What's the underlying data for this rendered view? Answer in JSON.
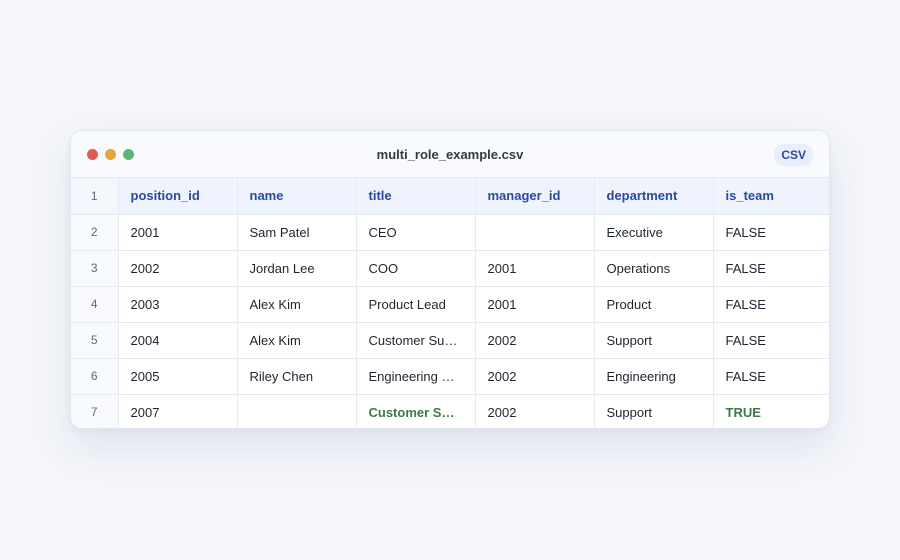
{
  "window": {
    "title": "multi_role_example.csv",
    "badge": "CSV"
  },
  "table": {
    "header_row_number": "1",
    "columns": [
      "position_id",
      "name",
      "title",
      "manager_id",
      "department",
      "is_team"
    ],
    "rows": [
      {
        "num": "2",
        "cells": [
          "2001",
          "Sam Patel",
          "CEO",
          "",
          "Executive",
          "FALSE"
        ],
        "highlight": [
          false,
          false,
          false,
          false,
          false,
          false
        ]
      },
      {
        "num": "3",
        "cells": [
          "2002",
          "Jordan Lee",
          "COO",
          "2001",
          "Operations",
          "FALSE"
        ],
        "highlight": [
          false,
          false,
          false,
          false,
          false,
          false
        ]
      },
      {
        "num": "4",
        "cells": [
          "2003",
          "Alex Kim",
          "Product Lead",
          "2001",
          "Product",
          "FALSE"
        ],
        "highlight": [
          false,
          false,
          false,
          false,
          false,
          false
        ]
      },
      {
        "num": "5",
        "cells": [
          "2004",
          "Alex Kim",
          "Customer Su…",
          "2002",
          "Support",
          "FALSE"
        ],
        "highlight": [
          false,
          false,
          false,
          false,
          false,
          false
        ]
      },
      {
        "num": "6",
        "cells": [
          "2005",
          "Riley Chen",
          "Engineering …",
          "2002",
          "Engineering",
          "FALSE"
        ],
        "highlight": [
          false,
          false,
          false,
          false,
          false,
          false
        ]
      },
      {
        "num": "7",
        "cells": [
          "2007",
          "",
          "Customer S…",
          "2002",
          "Support",
          "TRUE"
        ],
        "highlight": [
          false,
          false,
          true,
          false,
          false,
          true
        ]
      }
    ]
  },
  "colors": {
    "highlight_text": "#3c7a4d",
    "header_text": "#2b4aa0"
  }
}
